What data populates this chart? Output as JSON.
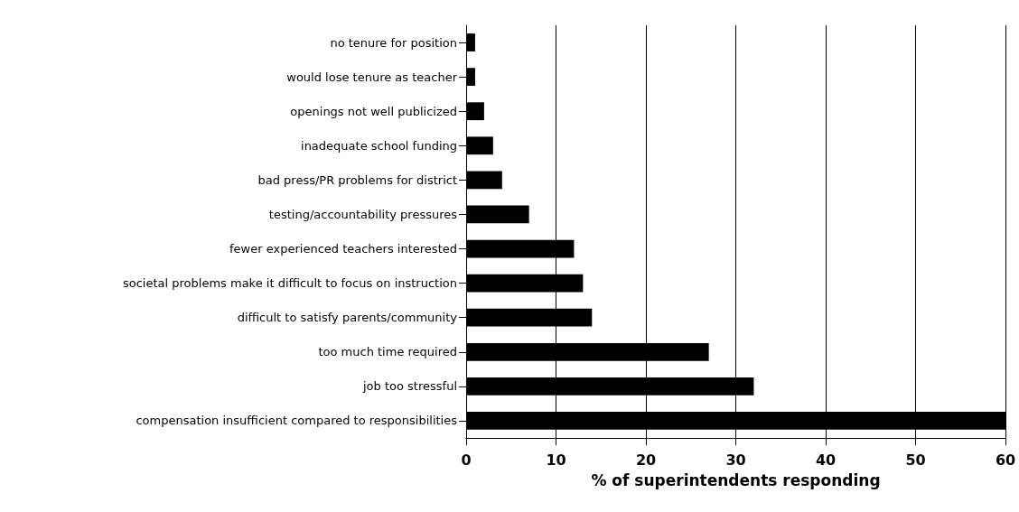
{
  "chart_data": {
    "type": "bar",
    "orientation": "horizontal",
    "xlabel": "% of superintendents responding",
    "categories": [
      "no tenure for position",
      "would lose tenure as teacher",
      "openings not well publicized",
      "inadequate school funding",
      "bad press/PR problems for district",
      "testing/accountability pressures",
      "fewer experienced teachers interested",
      "societal problems make it difficult to focus on instruction",
      "difficult to satisfy parents/community",
      "too much time required",
      "job too stressful",
      "compensation insufficient compared to responsibilities"
    ],
    "values": [
      1,
      1,
      2,
      3,
      4,
      7,
      12,
      13,
      14,
      27,
      32,
      60
    ],
    "color": "#000000",
    "xlim": [
      0,
      60
    ],
    "xticks": [
      0,
      10,
      20,
      30,
      40,
      50,
      60
    ],
    "grid": "x"
  }
}
